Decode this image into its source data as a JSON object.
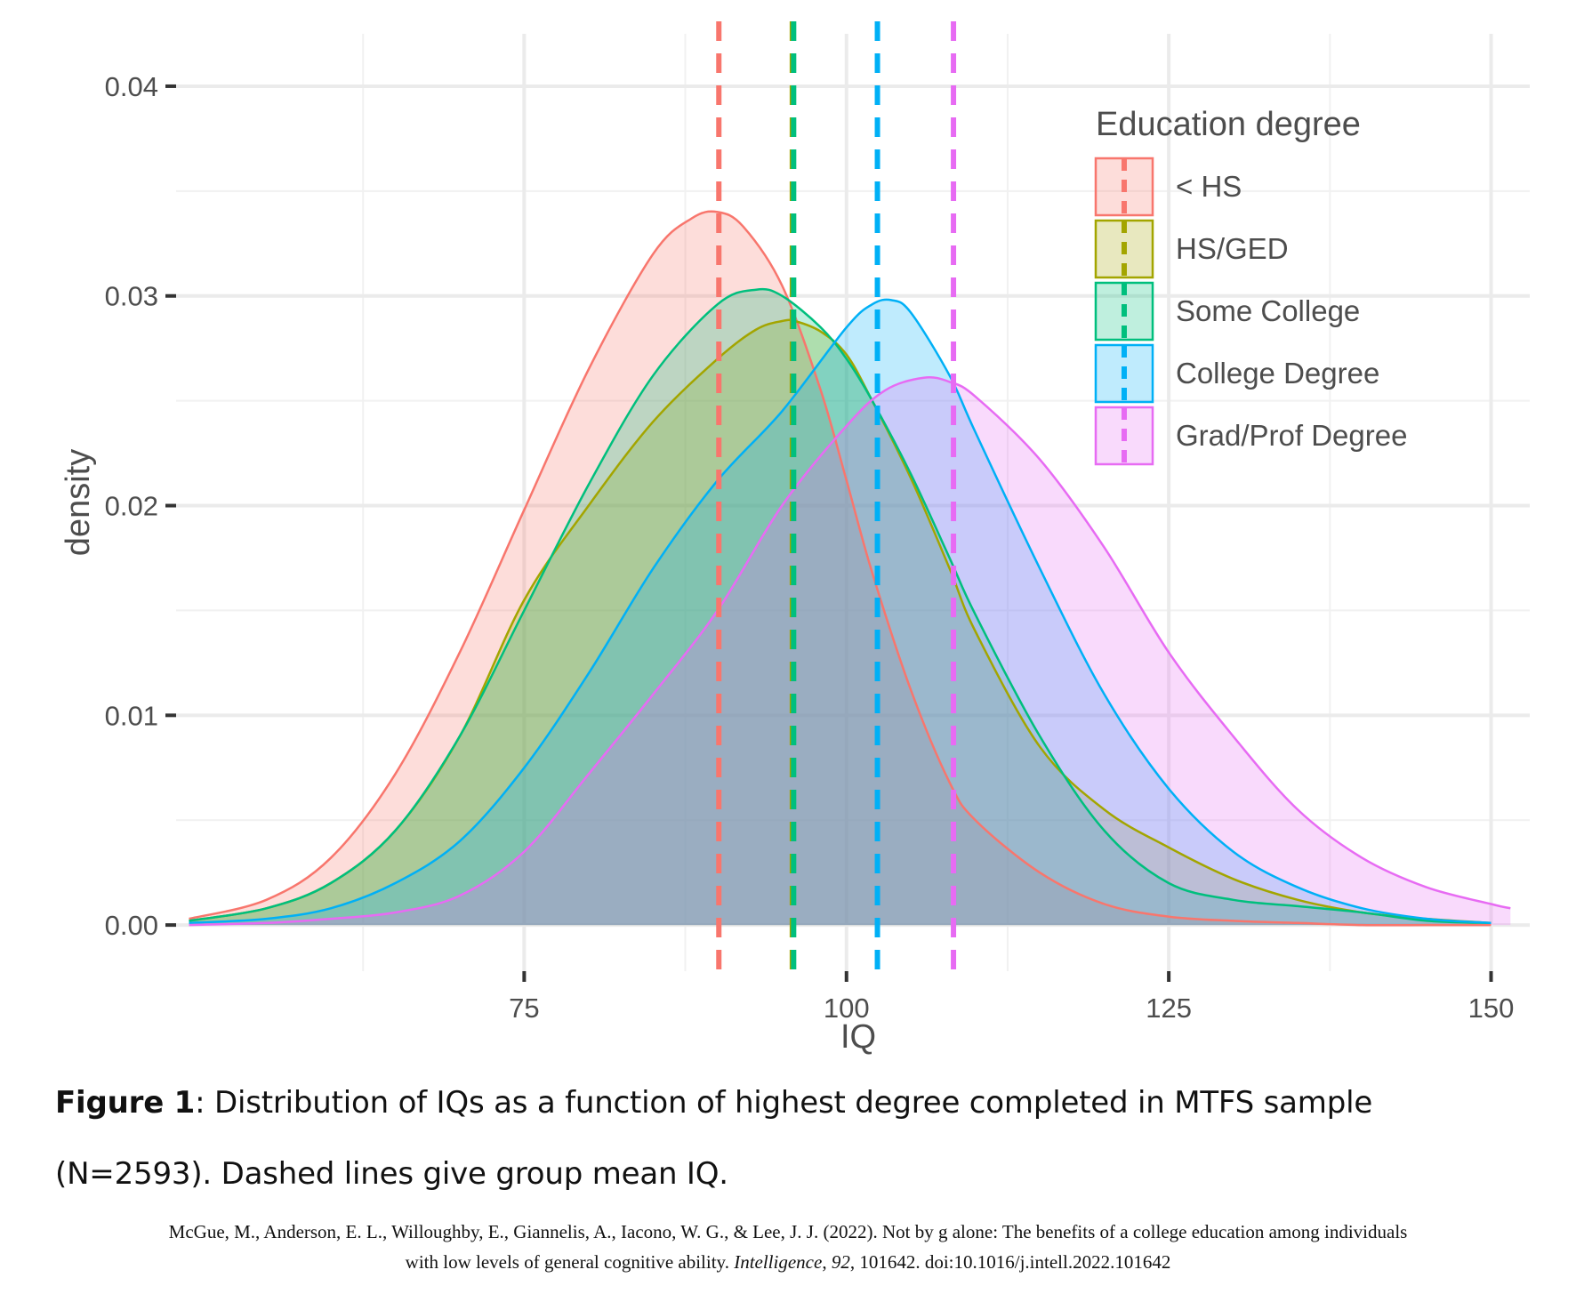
{
  "chart_data": {
    "type": "area",
    "xlabel": "IQ",
    "ylabel": "density",
    "xlim": [
      48,
      153
    ],
    "ylim": [
      -0.0022,
      0.0425
    ],
    "x_ticks": [
      75,
      100,
      125,
      150
    ],
    "x_tick_labels": [
      "75",
      "100",
      "125",
      "150"
    ],
    "y_ticks": [
      0.0,
      0.01,
      0.02,
      0.03,
      0.04
    ],
    "y_tick_labels": [
      "0.00",
      "0.01",
      "0.02",
      "0.03",
      "0.04"
    ],
    "grid": true,
    "legend": {
      "title": "Education degree",
      "placement": "top-right",
      "entries": [
        "< HS",
        "HS/GED",
        "Some College",
        "College Degree",
        "Grad/Prof Degree"
      ]
    },
    "series": [
      {
        "name": "< HS",
        "color": "#F8766D",
        "mean_iq": 90.1,
        "x": [
          49,
          55,
          60,
          65,
          70,
          75,
          80,
          85,
          88,
          90,
          92,
          95,
          98,
          100,
          102,
          105,
          108,
          110,
          115,
          120,
          125,
          130,
          135,
          140,
          145,
          150
        ],
        "y": [
          0.0003,
          0.0012,
          0.0032,
          0.0072,
          0.013,
          0.0198,
          0.0265,
          0.032,
          0.0337,
          0.034,
          0.0333,
          0.0305,
          0.0255,
          0.0212,
          0.0168,
          0.0112,
          0.0068,
          0.005,
          0.0025,
          0.001,
          0.0004,
          0.0002,
          0.0001,
          0.0,
          0.0,
          0.0
        ]
      },
      {
        "name": "HS/GED",
        "color": "#A3A500",
        "mean_iq": 95.8,
        "x": [
          49,
          55,
          60,
          65,
          70,
          75,
          80,
          85,
          90,
          93,
          95,
          96,
          98,
          100,
          102,
          105,
          108,
          110,
          115,
          120,
          125,
          130,
          135,
          140,
          145,
          150
        ],
        "y": [
          0.0002,
          0.0008,
          0.002,
          0.0045,
          0.009,
          0.0155,
          0.02,
          0.024,
          0.027,
          0.0284,
          0.0288,
          0.0288,
          0.0283,
          0.0272,
          0.025,
          0.0213,
          0.017,
          0.014,
          0.0085,
          0.0055,
          0.0037,
          0.0022,
          0.0012,
          0.0006,
          0.0003,
          0.0001
        ]
      },
      {
        "name": "Some College",
        "color": "#00BF7D",
        "mean_iq": 95.9,
        "x": [
          49,
          55,
          60,
          65,
          70,
          75,
          80,
          85,
          90,
          93,
          95,
          98,
          100,
          102,
          105,
          108,
          110,
          115,
          120,
          125,
          130,
          135,
          140,
          145,
          150
        ],
        "y": [
          0.0002,
          0.0008,
          0.002,
          0.0045,
          0.009,
          0.015,
          0.021,
          0.0262,
          0.0296,
          0.0303,
          0.03,
          0.0285,
          0.027,
          0.025,
          0.0215,
          0.0175,
          0.0148,
          0.009,
          0.0045,
          0.002,
          0.0012,
          0.0009,
          0.0006,
          0.0002,
          0.0001
        ]
      },
      {
        "name": "College Degree",
        "color": "#00B0F6",
        "mean_iq": 102.4,
        "x": [
          49,
          55,
          60,
          65,
          70,
          75,
          80,
          85,
          90,
          95,
          100,
          102,
          103.5,
          105,
          108,
          110,
          115,
          120,
          125,
          130,
          135,
          140,
          145,
          150
        ],
        "y": [
          0.0001,
          0.0003,
          0.0008,
          0.002,
          0.004,
          0.0075,
          0.012,
          0.017,
          0.0212,
          0.0245,
          0.0285,
          0.0296,
          0.0298,
          0.0292,
          0.0262,
          0.0235,
          0.017,
          0.011,
          0.0065,
          0.0035,
          0.0018,
          0.0008,
          0.0003,
          0.0001
        ]
      },
      {
        "name": "Grad/Prof Degree",
        "color": "#E76BF3",
        "mean_iq": 108.3,
        "x": [
          49,
          55,
          60,
          65,
          70,
          75,
          80,
          85,
          90,
          95,
          100,
          103,
          106,
          108,
          110,
          115,
          120,
          125,
          130,
          135,
          140,
          145,
          150,
          151.5
        ],
        "y": [
          0.0,
          0.0001,
          0.0003,
          0.0006,
          0.0014,
          0.0035,
          0.0072,
          0.011,
          0.015,
          0.02,
          0.0238,
          0.0255,
          0.0261,
          0.0259,
          0.0252,
          0.0222,
          0.018,
          0.013,
          0.009,
          0.0055,
          0.0032,
          0.0018,
          0.001,
          0.0008
        ]
      }
    ]
  },
  "caption": {
    "label": "Figure 1",
    "text": ": Distribution of IQs as a function of highest degree completed in MTFS sample",
    "text2": "(N=2593). Dashed lines give group mean IQ."
  },
  "citation": {
    "pre": "McGue, M., Anderson, E. L., Willoughby, E., Giannelis, A., Iacono, W. G., & Lee, J. J. (2022). Not by g alone: The benefits of a college education among individuals",
    "mid": "with low levels of general cognitive ability. ",
    "journal": "Intelligence",
    "sep1": ", ",
    "volume": "92",
    "post": ", 101642. doi:10.1016/j.intell.2022.101642"
  }
}
